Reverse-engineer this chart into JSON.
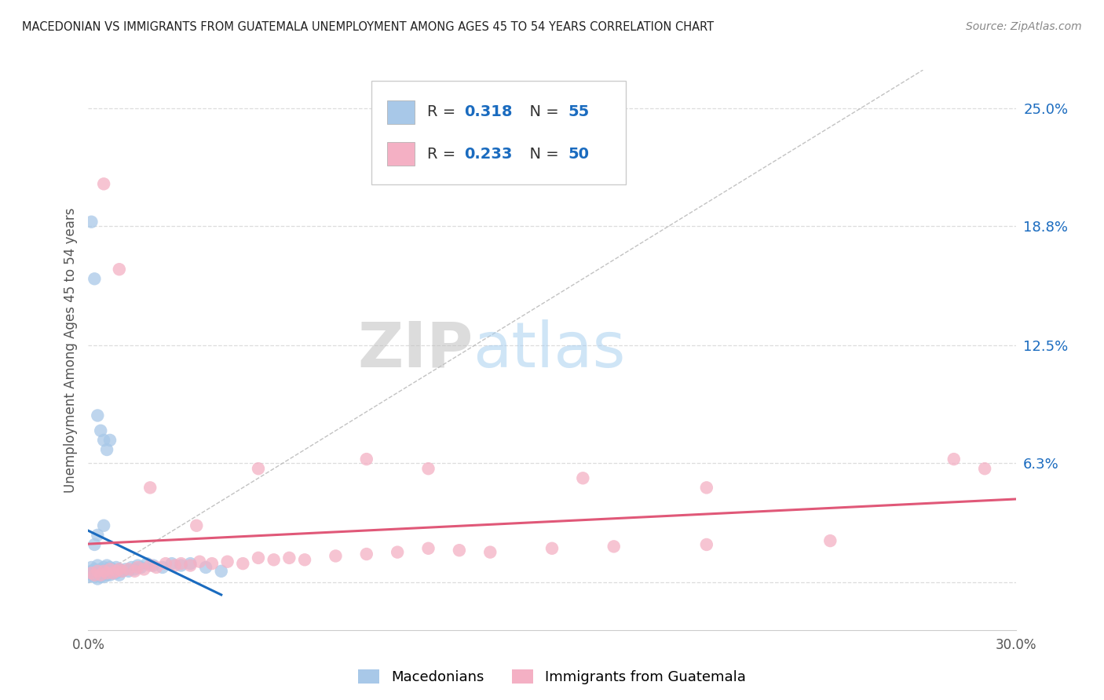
{
  "title": "MACEDONIAN VS IMMIGRANTS FROM GUATEMALA UNEMPLOYMENT AMONG AGES 45 TO 54 YEARS CORRELATION CHART",
  "source": "Source: ZipAtlas.com",
  "ylabel": "Unemployment Among Ages 45 to 54 years",
  "xlim": [
    0.0,
    0.3
  ],
  "ylim": [
    -0.025,
    0.27
  ],
  "yticks": [
    0.0,
    0.063,
    0.125,
    0.188,
    0.25
  ],
  "ytick_labels": [
    "",
    "6.3%",
    "12.5%",
    "18.8%",
    "25.0%"
  ],
  "macedonian_color": "#a8c8e8",
  "guatemalan_color": "#f4b0c4",
  "macedonian_line_color": "#1a6bbf",
  "guatemalan_line_color": "#e05878",
  "diagonal_line_color": "#b8b8b8",
  "background_color": "#ffffff",
  "watermark_zip": "ZIP",
  "watermark_atlas": "atlas",
  "R_mac": "0.318",
  "N_mac": "55",
  "R_guat": "0.233",
  "N_guat": "50",
  "mac_x": [
    0.0,
    0.0,
    0.001,
    0.001,
    0.001,
    0.002,
    0.002,
    0.002,
    0.003,
    0.003,
    0.003,
    0.003,
    0.004,
    0.004,
    0.004,
    0.005,
    0.005,
    0.005,
    0.006,
    0.006,
    0.006,
    0.007,
    0.007,
    0.007,
    0.008,
    0.008,
    0.009,
    0.009,
    0.01,
    0.01,
    0.011,
    0.012,
    0.013,
    0.014,
    0.015,
    0.016,
    0.017,
    0.019,
    0.021,
    0.024,
    0.027,
    0.03,
    0.033,
    0.038,
    0.043,
    0.001,
    0.002,
    0.003,
    0.004,
    0.005,
    0.006,
    0.007,
    0.005,
    0.003,
    0.002
  ],
  "mac_y": [
    0.005,
    0.003,
    0.004,
    0.006,
    0.008,
    0.003,
    0.005,
    0.007,
    0.002,
    0.004,
    0.006,
    0.009,
    0.003,
    0.005,
    0.007,
    0.003,
    0.005,
    0.008,
    0.004,
    0.006,
    0.009,
    0.004,
    0.006,
    0.008,
    0.005,
    0.007,
    0.005,
    0.008,
    0.004,
    0.007,
    0.006,
    0.007,
    0.006,
    0.008,
    0.007,
    0.009,
    0.008,
    0.01,
    0.009,
    0.008,
    0.01,
    0.009,
    0.01,
    0.008,
    0.006,
    0.19,
    0.16,
    0.088,
    0.08,
    0.075,
    0.07,
    0.075,
    0.03,
    0.025,
    0.02
  ],
  "guat_x": [
    0.001,
    0.002,
    0.003,
    0.004,
    0.005,
    0.006,
    0.007,
    0.008,
    0.009,
    0.01,
    0.011,
    0.013,
    0.015,
    0.016,
    0.018,
    0.02,
    0.022,
    0.025,
    0.028,
    0.03,
    0.033,
    0.036,
    0.04,
    0.045,
    0.05,
    0.055,
    0.06,
    0.065,
    0.07,
    0.08,
    0.09,
    0.1,
    0.11,
    0.12,
    0.13,
    0.15,
    0.17,
    0.2,
    0.24,
    0.28,
    0.005,
    0.01,
    0.02,
    0.035,
    0.055,
    0.09,
    0.11,
    0.16,
    0.2,
    0.29
  ],
  "guat_y": [
    0.005,
    0.004,
    0.006,
    0.004,
    0.006,
    0.005,
    0.007,
    0.005,
    0.006,
    0.007,
    0.006,
    0.007,
    0.006,
    0.008,
    0.007,
    0.009,
    0.008,
    0.01,
    0.009,
    0.01,
    0.009,
    0.011,
    0.01,
    0.011,
    0.01,
    0.013,
    0.012,
    0.013,
    0.012,
    0.014,
    0.015,
    0.016,
    0.018,
    0.017,
    0.016,
    0.018,
    0.019,
    0.02,
    0.022,
    0.065,
    0.21,
    0.165,
    0.05,
    0.03,
    0.06,
    0.065,
    0.06,
    0.055,
    0.05,
    0.06
  ]
}
